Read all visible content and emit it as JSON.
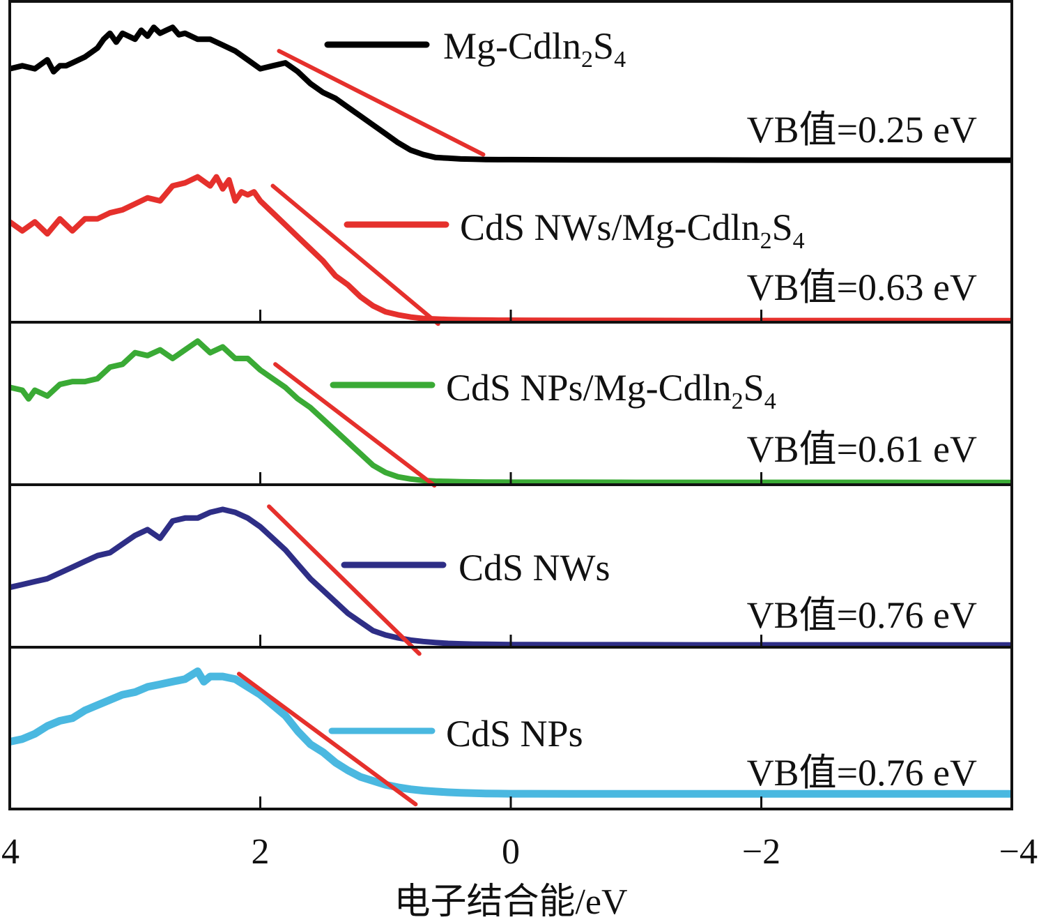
{
  "chart_data": {
    "type": "line",
    "title": "",
    "xlabel": "电子结合能/eV",
    "ylabel": "",
    "xlim": [
      4,
      -4
    ],
    "xticks": [
      4,
      2,
      0,
      -2,
      -4
    ],
    "xtick_labels": [
      "4",
      "2",
      "0",
      "−2",
      "−4"
    ],
    "grid": false,
    "panels": [
      {
        "name": "Mg-CdIn2S4",
        "legend_main": "Mg-Cdln",
        "legend_sub1": "2",
        "legend_mid": "S",
        "legend_sub2": "4",
        "legend_prefix": "",
        "vb_label": "VB值=0.25 eV",
        "vb_value": 0.25,
        "color": "#000000",
        "x": [
          4.0,
          3.9,
          3.8,
          3.7,
          3.65,
          3.6,
          3.55,
          3.5,
          3.4,
          3.3,
          3.25,
          3.2,
          3.15,
          3.1,
          3.0,
          2.95,
          2.9,
          2.85,
          2.8,
          2.75,
          2.7,
          2.65,
          2.6,
          2.5,
          2.4,
          2.3,
          2.2,
          2.1,
          2.0,
          1.9,
          1.8,
          1.7,
          1.6,
          1.5,
          1.4,
          1.3,
          1.2,
          1.1,
          1.0,
          0.9,
          0.8,
          0.7,
          0.6,
          0.5,
          0.4,
          0.3,
          0.2,
          0.1,
          0.0,
          -0.5,
          -1.0,
          -1.5,
          -2.0,
          -2.5,
          -3.0,
          -3.5,
          -4.0
        ],
        "y": [
          0.62,
          0.64,
          0.62,
          0.68,
          0.6,
          0.64,
          0.64,
          0.66,
          0.7,
          0.76,
          0.82,
          0.86,
          0.8,
          0.86,
          0.82,
          0.88,
          0.84,
          0.9,
          0.86,
          0.88,
          0.9,
          0.85,
          0.86,
          0.82,
          0.82,
          0.78,
          0.74,
          0.68,
          0.62,
          0.64,
          0.66,
          0.6,
          0.52,
          0.46,
          0.42,
          0.36,
          0.3,
          0.24,
          0.18,
          0.12,
          0.07,
          0.04,
          0.02,
          0.015,
          0.01,
          0.008,
          0.006,
          0.005,
          0.005,
          0.004,
          0.003,
          0.003,
          0.002,
          0.002,
          0.002,
          0.001,
          0.001
        ],
        "fit": [
          [
            1.85,
            0.74
          ],
          [
            0.22,
            0.04
          ]
        ]
      },
      {
        "name": "CdS NWs/Mg-CdIn2S4",
        "legend_prefix": "CdS NWs/",
        "legend_main": "Mg-Cdln",
        "legend_sub1": "2",
        "legend_mid": "S",
        "legend_sub2": "4",
        "vb_label": "VB值=0.63 eV",
        "vb_value": 0.63,
        "color": "#e5302c",
        "x": [
          4.0,
          3.9,
          3.8,
          3.7,
          3.6,
          3.5,
          3.4,
          3.3,
          3.2,
          3.1,
          3.0,
          2.9,
          2.8,
          2.7,
          2.6,
          2.5,
          2.4,
          2.35,
          2.3,
          2.25,
          2.2,
          2.15,
          2.1,
          2.05,
          2.0,
          1.95,
          1.9,
          1.8,
          1.7,
          1.6,
          1.5,
          1.4,
          1.3,
          1.2,
          1.1,
          1.0,
          0.9,
          0.8,
          0.7,
          0.6,
          0.5,
          0.4,
          0.3,
          0.2,
          0.1,
          0.0,
          -0.5,
          -1.0,
          -1.5,
          -2.0,
          -2.5,
          -3.0,
          -3.5,
          -4.0
        ],
        "y": [
          0.66,
          0.6,
          0.66,
          0.58,
          0.68,
          0.6,
          0.68,
          0.68,
          0.72,
          0.74,
          0.78,
          0.82,
          0.8,
          0.9,
          0.92,
          0.96,
          0.9,
          0.96,
          0.88,
          0.94,
          0.8,
          0.86,
          0.84,
          0.86,
          0.8,
          0.76,
          0.72,
          0.64,
          0.56,
          0.48,
          0.4,
          0.3,
          0.24,
          0.16,
          0.1,
          0.06,
          0.04,
          0.025,
          0.016,
          0.012,
          0.009,
          0.007,
          0.006,
          0.005,
          0.004,
          0.004,
          0.003,
          0.003,
          0.002,
          0.002,
          0.002,
          0.002,
          0.001,
          0.001
        ],
        "fit": [
          [
            1.9,
            0.9
          ],
          [
            0.58,
            -0.02
          ]
        ]
      },
      {
        "name": "CdS NPs/Mg-CdIn2S4",
        "legend_prefix": "CdS NPs/",
        "legend_main": "Mg-Cdln",
        "legend_sub1": "2",
        "legend_mid": "S",
        "legend_sub2": "4",
        "vb_label": "VB值=0.61 eV",
        "vb_value": 0.61,
        "color": "#3aaa35",
        "x": [
          4.0,
          3.9,
          3.85,
          3.8,
          3.7,
          3.6,
          3.5,
          3.4,
          3.3,
          3.2,
          3.1,
          3.0,
          2.9,
          2.8,
          2.7,
          2.6,
          2.5,
          2.4,
          2.3,
          2.2,
          2.1,
          2.0,
          1.9,
          1.8,
          1.7,
          1.6,
          1.5,
          1.4,
          1.3,
          1.2,
          1.1,
          1.0,
          0.9,
          0.8,
          0.7,
          0.6,
          0.5,
          0.4,
          0.3,
          0.2,
          0.1,
          0.0,
          -0.5,
          -1.0,
          -1.5,
          -2.0,
          -2.5,
          -3.0,
          -3.5,
          -4.0
        ],
        "y": [
          0.66,
          0.64,
          0.58,
          0.64,
          0.6,
          0.68,
          0.7,
          0.7,
          0.72,
          0.8,
          0.82,
          0.9,
          0.88,
          0.92,
          0.86,
          0.92,
          0.98,
          0.9,
          0.94,
          0.86,
          0.86,
          0.78,
          0.72,
          0.66,
          0.58,
          0.52,
          0.44,
          0.36,
          0.28,
          0.2,
          0.12,
          0.07,
          0.04,
          0.025,
          0.015,
          0.01,
          0.008,
          0.006,
          0.005,
          0.004,
          0.004,
          0.003,
          0.003,
          0.002,
          0.002,
          0.002,
          0.002,
          0.002,
          0.001,
          0.001
        ],
        "fit": [
          [
            1.88,
            0.82
          ],
          [
            0.61,
            -0.02
          ]
        ]
      },
      {
        "name": "CdS NWs",
        "legend_prefix": "CdS NWs",
        "legend_main": "",
        "legend_sub1": "",
        "legend_mid": "",
        "legend_sub2": "",
        "vb_label": "VB值=0.76 eV",
        "vb_value": 0.76,
        "color": "#2e2e86",
        "x": [
          4.0,
          3.9,
          3.8,
          3.7,
          3.6,
          3.5,
          3.4,
          3.3,
          3.2,
          3.1,
          3.0,
          2.9,
          2.8,
          2.7,
          2.6,
          2.5,
          2.4,
          2.3,
          2.2,
          2.1,
          2.0,
          1.9,
          1.8,
          1.7,
          1.6,
          1.5,
          1.4,
          1.3,
          1.2,
          1.1,
          1.0,
          0.9,
          0.8,
          0.7,
          0.6,
          0.5,
          0.4,
          0.3,
          0.2,
          0.1,
          0.0,
          -0.5,
          -1.0,
          -1.5,
          -2.0,
          -2.5,
          -3.0,
          -3.5,
          -4.0
        ],
        "y": [
          0.4,
          0.42,
          0.44,
          0.46,
          0.5,
          0.54,
          0.58,
          0.62,
          0.64,
          0.7,
          0.76,
          0.8,
          0.74,
          0.86,
          0.88,
          0.88,
          0.92,
          0.94,
          0.92,
          0.88,
          0.82,
          0.74,
          0.66,
          0.56,
          0.46,
          0.38,
          0.3,
          0.22,
          0.16,
          0.1,
          0.07,
          0.05,
          0.035,
          0.025,
          0.018,
          0.012,
          0.009,
          0.007,
          0.006,
          0.005,
          0.004,
          0.003,
          0.003,
          0.002,
          0.002,
          0.002,
          0.002,
          0.001,
          0.001
        ],
        "fit": [
          [
            1.93,
            0.96
          ],
          [
            0.73,
            -0.06
          ]
        ]
      },
      {
        "name": "CdS NPs",
        "legend_prefix": "CdS NPs",
        "legend_main": "",
        "legend_sub1": "",
        "legend_mid": "",
        "legend_sub2": "",
        "vb_label": "VB值=0.76 eV",
        "vb_value": 0.76,
        "color": "#4ab8e0",
        "x": [
          4.0,
          3.9,
          3.8,
          3.7,
          3.6,
          3.5,
          3.4,
          3.3,
          3.2,
          3.1,
          3.0,
          2.9,
          2.8,
          2.7,
          2.6,
          2.5,
          2.45,
          2.4,
          2.3,
          2.2,
          2.1,
          2.0,
          1.9,
          1.8,
          1.7,
          1.6,
          1.5,
          1.4,
          1.3,
          1.2,
          1.1,
          1.0,
          0.9,
          0.8,
          0.7,
          0.6,
          0.5,
          0.4,
          0.3,
          0.2,
          0.1,
          0.0,
          -0.5,
          -1.0,
          -1.5,
          -2.0,
          -2.5,
          -3.0,
          -3.5,
          -4.0
        ],
        "y": [
          0.42,
          0.44,
          0.48,
          0.54,
          0.58,
          0.6,
          0.66,
          0.7,
          0.74,
          0.78,
          0.8,
          0.84,
          0.86,
          0.88,
          0.9,
          0.96,
          0.88,
          0.92,
          0.92,
          0.9,
          0.84,
          0.78,
          0.7,
          0.62,
          0.5,
          0.4,
          0.34,
          0.26,
          0.2,
          0.15,
          0.12,
          0.09,
          0.07,
          0.055,
          0.045,
          0.038,
          0.032,
          0.028,
          0.025,
          0.023,
          0.022,
          0.021,
          0.02,
          0.02,
          0.02,
          0.02,
          0.02,
          0.02,
          0.02,
          0.02
        ],
        "fit": [
          [
            2.17,
            0.94
          ],
          [
            0.76,
            -0.06
          ]
        ]
      }
    ]
  }
}
